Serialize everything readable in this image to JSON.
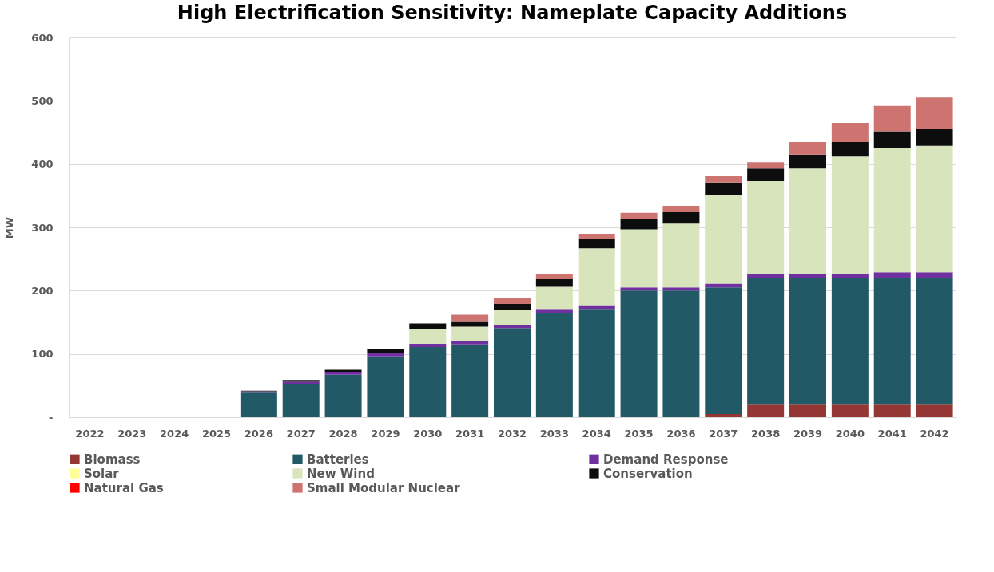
{
  "chart_data": {
    "type": "bar",
    "title": "High Electrification Sensitivity: Nameplate Capacity Additions",
    "ylabel": "MW",
    "categories": [
      "2022",
      "2023",
      "2024",
      "2025",
      "2026",
      "2027",
      "2028",
      "2029",
      "2030",
      "2031",
      "2032",
      "2033",
      "2034",
      "2035",
      "2036",
      "2037",
      "2038",
      "2039",
      "2040",
      "2041",
      "2042"
    ],
    "stacked": true,
    "ylim": [
      0,
      600
    ],
    "yticks": [
      {
        "value": 0,
        "label": "-"
      },
      100,
      200,
      300,
      400,
      500,
      600
    ],
    "grid": "y",
    "legend": "bottom",
    "series": [
      {
        "name": "Biomass",
        "color": "#943634",
        "values": [
          0,
          0,
          0,
          0,
          0,
          0,
          0,
          0,
          0,
          0,
          0,
          0,
          0,
          0,
          0,
          5,
          20,
          20,
          20,
          20,
          20
        ]
      },
      {
        "name": "Batteries",
        "color": "#215967",
        "values": [
          0,
          0,
          0,
          0,
          40,
          53,
          67,
          96,
          111,
          115,
          141,
          165,
          171,
          200,
          200,
          200,
          200,
          200,
          200,
          200,
          200
        ]
      },
      {
        "name": "Demand Response",
        "color": "#7030a0",
        "values": [
          0,
          0,
          0,
          0,
          1,
          3,
          5,
          5,
          5,
          5,
          5,
          6,
          6,
          5,
          5,
          6,
          6,
          6,
          6,
          9,
          9
        ]
      },
      {
        "name": "Solar",
        "color": "#ffff99",
        "values": [
          0,
          0,
          0,
          0,
          0,
          0,
          0,
          0,
          0,
          0,
          0,
          0,
          0,
          0,
          0,
          0,
          0,
          0,
          0,
          0,
          0
        ]
      },
      {
        "name": "New Wind",
        "color": "#d8e4bc",
        "values": [
          0,
          0,
          0,
          0,
          0,
          0,
          0,
          0,
          24,
          23,
          23,
          35,
          90,
          92,
          101,
          140,
          147,
          167,
          186,
          197,
          200
        ]
      },
      {
        "name": "Conservation",
        "color": "#0d0d0d",
        "values": [
          0,
          0,
          0,
          0,
          1,
          3,
          3,
          6,
          8,
          9,
          10,
          12,
          14,
          16,
          18,
          20,
          20,
          22,
          23,
          26,
          26
        ]
      },
      {
        "name": "Natural Gas",
        "color": "#ff0000",
        "values": [
          0,
          0,
          0,
          0,
          0,
          0,
          0,
          0,
          0,
          0,
          0,
          0,
          0,
          0,
          0,
          0,
          0,
          0,
          0,
          0,
          0
        ]
      },
      {
        "name": "Small Modular Nuclear",
        "color": "#cd7370",
        "values": [
          0,
          0,
          0,
          0,
          0,
          0,
          0,
          0,
          0,
          10,
          10,
          9,
          9,
          10,
          10,
          10,
          10,
          20,
          30,
          40,
          50
        ]
      }
    ]
  }
}
